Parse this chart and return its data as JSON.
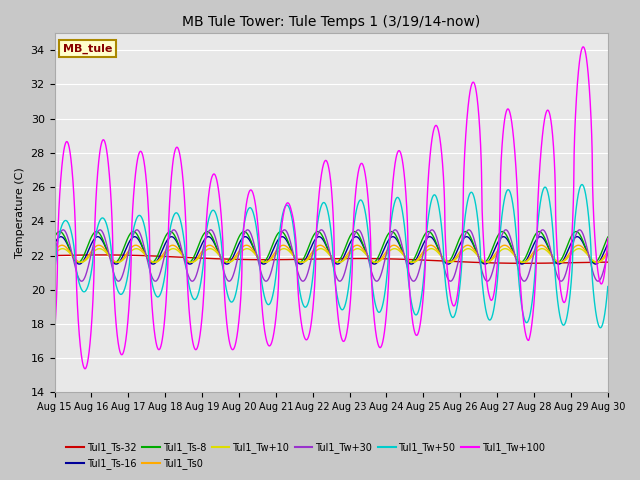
{
  "title": "MB Tule Tower: Tule Temps 1 (3/19/14-now)",
  "ylabel": "Temperature (C)",
  "ylim": [
    14,
    35
  ],
  "yticks": [
    14,
    16,
    18,
    20,
    22,
    24,
    26,
    28,
    30,
    32,
    34
  ],
  "xlim": [
    15,
    30
  ],
  "xtick_labels": [
    "Aug 15",
    "Aug 16",
    "Aug 17",
    "Aug 18",
    "Aug 19",
    "Aug 20",
    "Aug 21",
    "Aug 22",
    "Aug 23",
    "Aug 24",
    "Aug 25",
    "Aug 26",
    "Aug 27",
    "Aug 28",
    "Aug 29",
    "Aug 30"
  ],
  "fig_bg": "#c8c8c8",
  "plot_bg": "#e8e8e8",
  "grid_color": "#ffffff",
  "colors": {
    "Tul1_Ts-32": "#cc0000",
    "Tul1_Ts-16": "#000099",
    "Tul1_Ts-8": "#00aa00",
    "Tul1_Ts0": "#ffaa00",
    "Tul1_Tw+10": "#dddd00",
    "Tul1_Tw+30": "#9933cc",
    "Tul1_Tw+50": "#00cccc",
    "Tul1_Tw+100": "#ff00ff"
  },
  "legend_text": "MB_tule",
  "legend_color": "#880000",
  "legend_bg": "#ffffcc",
  "legend_border": "#aa8800",
  "lw": 1.0
}
